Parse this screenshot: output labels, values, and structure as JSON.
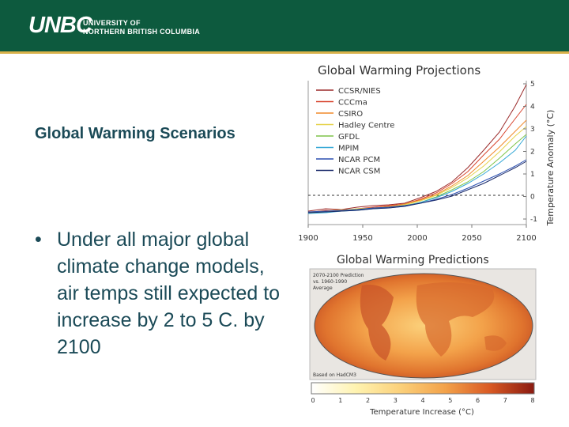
{
  "header": {
    "logo_mark": "UNBC",
    "logo_line1": "UNIVERSITY OF",
    "logo_line2": "NORTHERN BRITISH COLUMBIA",
    "colors": {
      "background": "#0d5a3e",
      "rule": "#d9b24a"
    }
  },
  "slide": {
    "title": "Global Warming Scenarios",
    "bullet_symbol": "•",
    "bullet_text": "Under all major global climate change models, air temps still expected to increase by 2 to 5 C. by 2100"
  },
  "figure_top": {
    "title": "Global Warming Projections",
    "ylabel": "Temperature Anomaly (°C)",
    "x_ticks": [
      "1900",
      "1950",
      "2000",
      "2050",
      "2100"
    ],
    "y_ticks": [
      "5",
      "4",
      "3",
      "2",
      "1",
      "0",
      "-1"
    ],
    "legend": [
      {
        "name": "CCSR/NIES",
        "color": "#9b2a2a"
      },
      {
        "name": "CCCma",
        "color": "#d8442e"
      },
      {
        "name": "CSIRO",
        "color": "#f08a2a"
      },
      {
        "name": "Hadley Centre",
        "color": "#e6d24a"
      },
      {
        "name": "GFDL",
        "color": "#7ec44a"
      },
      {
        "name": "MPIM",
        "color": "#35a8d6"
      },
      {
        "name": "NCAR PCM",
        "color": "#2a4fb0"
      },
      {
        "name": "NCAR CSM",
        "color": "#1a2a6a"
      }
    ]
  },
  "figure_bottom": {
    "title": "Global Warming Predictions",
    "caption_lines": [
      "2070-2100 Prediction",
      "vs. 1960-1990",
      "Average"
    ],
    "source": "Based on HadCM3",
    "colorbar_label": "Temperature Increase (°C)",
    "colorbar_ticks": [
      "0",
      "1",
      "2",
      "3",
      "4",
      "5",
      "6",
      "7",
      "8"
    ]
  }
}
